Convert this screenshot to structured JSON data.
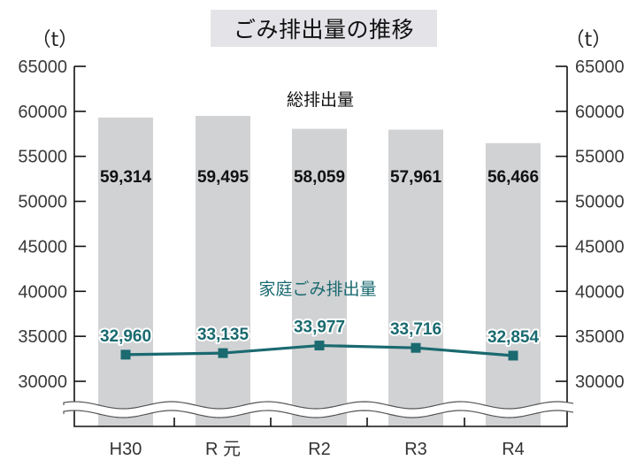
{
  "chart_data": {
    "type": "bar+line",
    "title": "ごみ排出量の推移",
    "ylabel_left": "（t）",
    "ylabel_right": "（t）",
    "xlabel": "",
    "categories": [
      "H30",
      "R 元",
      "R2",
      "R3",
      "R4"
    ],
    "yticks": [
      30000,
      35000,
      40000,
      45000,
      50000,
      55000,
      60000,
      65000
    ],
    "ylim": [
      30000,
      65000
    ],
    "axis_break": true,
    "grid": false,
    "series": [
      {
        "name": "総排出量",
        "type": "bar",
        "color": "#d1d2d4",
        "values": [
          59314,
          59495,
          58059,
          57961,
          56466
        ],
        "labels": [
          "59,314",
          "59,495",
          "58,059",
          "57,961",
          "56,466"
        ]
      },
      {
        "name": "家庭ごみ排出量",
        "type": "line",
        "color": "#1a6a70",
        "values": [
          32960,
          33135,
          33977,
          33716,
          32854
        ],
        "labels": [
          "32,960",
          "33,135",
          "33,977",
          "33,716",
          "32,854"
        ]
      }
    ]
  }
}
